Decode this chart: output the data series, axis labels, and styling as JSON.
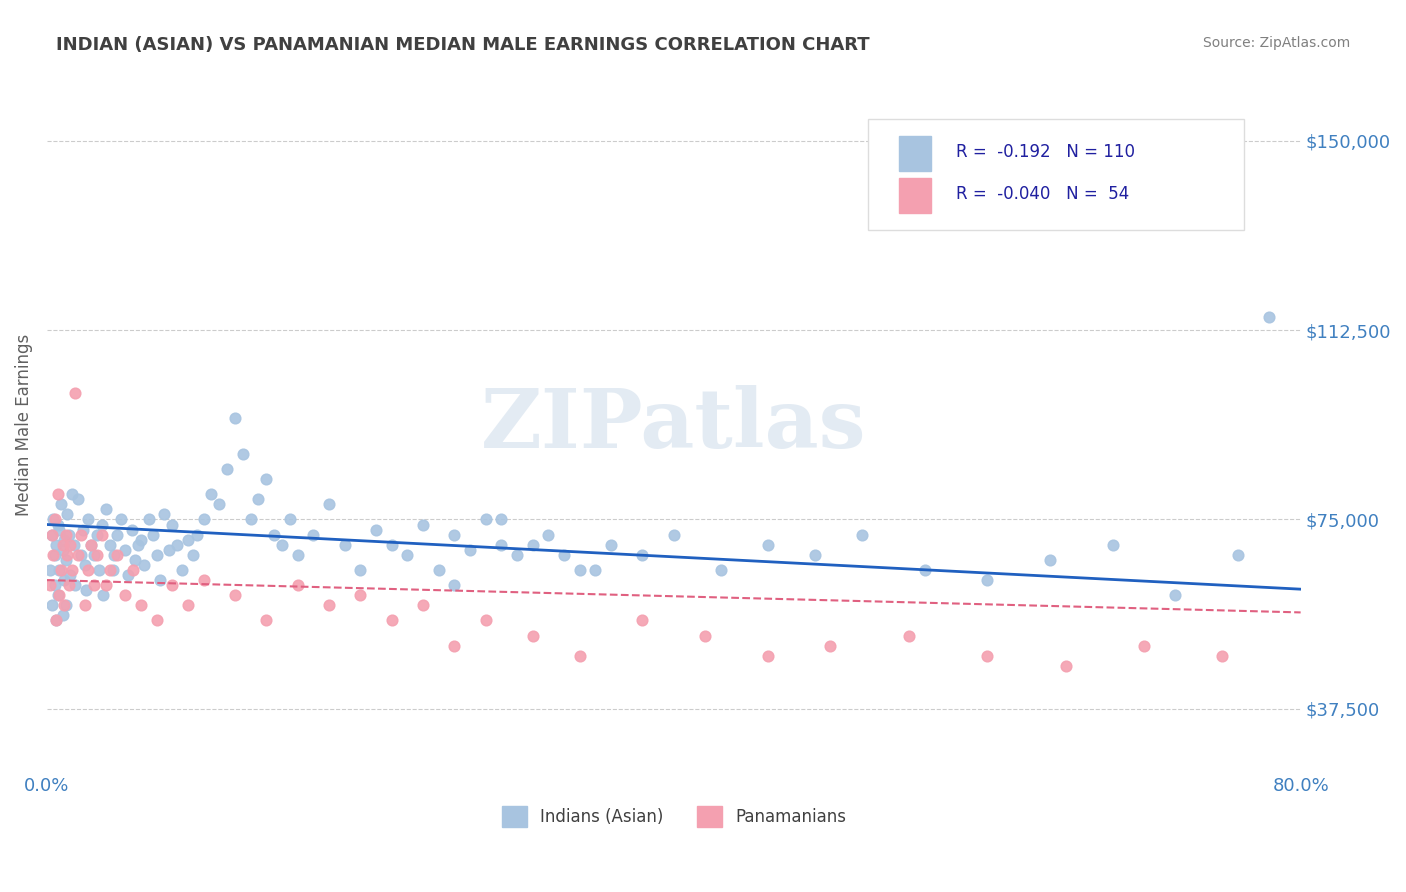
{
  "title": "INDIAN (ASIAN) VS PANAMANIAN MEDIAN MALE EARNINGS CORRELATION CHART",
  "source": "Source: ZipAtlas.com",
  "xlabel": "",
  "ylabel": "Median Male Earnings",
  "xlim": [
    0.0,
    0.8
  ],
  "ylim": [
    25000,
    162500
  ],
  "yticks": [
    37500,
    75000,
    112500,
    150000
  ],
  "ytick_labels": [
    "$37,500",
    "$75,000",
    "$112,500",
    "$150,000"
  ],
  "xticks": [
    0.0,
    0.1,
    0.2,
    0.3,
    0.4,
    0.5,
    0.6,
    0.7,
    0.8
  ],
  "xtick_labels": [
    "0.0%",
    "",
    "",
    "",
    "",
    "",
    "",
    "",
    "80.0%"
  ],
  "legend_r1": "R =  -0.192",
  "legend_n1": "N = 110",
  "legend_r2": "R =  -0.040",
  "legend_n2": "N =  54",
  "indian_color": "#a8c4e0",
  "panamanian_color": "#f4a0b0",
  "indian_line_color": "#2060c0",
  "panamanian_line_color": "#e06080",
  "title_color": "#404040",
  "axis_label_color": "#4080c0",
  "watermark": "ZIPatlas",
  "watermark_color": "#c8d8e8",
  "indian_x": [
    0.002,
    0.003,
    0.003,
    0.004,
    0.005,
    0.005,
    0.006,
    0.006,
    0.007,
    0.007,
    0.008,
    0.008,
    0.009,
    0.01,
    0.01,
    0.011,
    0.011,
    0.012,
    0.012,
    0.013,
    0.014,
    0.015,
    0.016,
    0.017,
    0.018,
    0.02,
    0.022,
    0.023,
    0.024,
    0.025,
    0.026,
    0.028,
    0.03,
    0.032,
    0.033,
    0.035,
    0.036,
    0.038,
    0.04,
    0.042,
    0.043,
    0.045,
    0.047,
    0.05,
    0.052,
    0.054,
    0.056,
    0.058,
    0.06,
    0.062,
    0.065,
    0.068,
    0.07,
    0.072,
    0.075,
    0.078,
    0.08,
    0.083,
    0.086,
    0.09,
    0.093,
    0.096,
    0.1,
    0.105,
    0.11,
    0.115,
    0.12,
    0.125,
    0.13,
    0.135,
    0.14,
    0.145,
    0.15,
    0.155,
    0.16,
    0.17,
    0.18,
    0.19,
    0.2,
    0.21,
    0.22,
    0.23,
    0.24,
    0.25,
    0.26,
    0.27,
    0.28,
    0.29,
    0.3,
    0.32,
    0.34,
    0.36,
    0.38,
    0.4,
    0.43,
    0.46,
    0.49,
    0.52,
    0.56,
    0.6,
    0.64,
    0.68,
    0.72,
    0.76,
    0.78,
    0.29,
    0.31,
    0.26,
    0.33,
    0.35
  ],
  "indian_y": [
    65000,
    72000,
    58000,
    75000,
    68000,
    62000,
    70000,
    55000,
    74000,
    60000,
    73000,
    65000,
    78000,
    69000,
    56000,
    71000,
    63000,
    67000,
    58000,
    76000,
    72000,
    64000,
    80000,
    70000,
    62000,
    79000,
    68000,
    73000,
    66000,
    61000,
    75000,
    70000,
    68000,
    72000,
    65000,
    74000,
    60000,
    77000,
    70000,
    65000,
    68000,
    72000,
    75000,
    69000,
    64000,
    73000,
    67000,
    70000,
    71000,
    66000,
    75000,
    72000,
    68000,
    63000,
    76000,
    69000,
    74000,
    70000,
    65000,
    71000,
    68000,
    72000,
    75000,
    80000,
    78000,
    85000,
    95000,
    88000,
    75000,
    79000,
    83000,
    72000,
    70000,
    75000,
    68000,
    72000,
    78000,
    70000,
    65000,
    73000,
    70000,
    68000,
    74000,
    65000,
    72000,
    69000,
    75000,
    70000,
    68000,
    72000,
    65000,
    70000,
    68000,
    72000,
    65000,
    70000,
    68000,
    72000,
    65000,
    63000,
    67000,
    70000,
    60000,
    68000,
    115000,
    75000,
    70000,
    62000,
    68000,
    65000
  ],
  "panamanian_x": [
    0.002,
    0.003,
    0.004,
    0.005,
    0.006,
    0.007,
    0.008,
    0.009,
    0.01,
    0.011,
    0.012,
    0.013,
    0.014,
    0.015,
    0.016,
    0.018,
    0.02,
    0.022,
    0.024,
    0.026,
    0.028,
    0.03,
    0.032,
    0.035,
    0.038,
    0.04,
    0.045,
    0.05,
    0.055,
    0.06,
    0.07,
    0.08,
    0.09,
    0.1,
    0.12,
    0.14,
    0.16,
    0.18,
    0.2,
    0.22,
    0.24,
    0.26,
    0.28,
    0.31,
    0.34,
    0.38,
    0.42,
    0.46,
    0.5,
    0.55,
    0.6,
    0.65,
    0.7,
    0.75
  ],
  "panamanian_y": [
    62000,
    72000,
    68000,
    75000,
    55000,
    80000,
    60000,
    65000,
    70000,
    58000,
    72000,
    68000,
    62000,
    70000,
    65000,
    100000,
    68000,
    72000,
    58000,
    65000,
    70000,
    62000,
    68000,
    72000,
    62000,
    65000,
    68000,
    60000,
    65000,
    58000,
    55000,
    62000,
    58000,
    63000,
    60000,
    55000,
    62000,
    58000,
    60000,
    55000,
    58000,
    50000,
    55000,
    52000,
    48000,
    55000,
    52000,
    48000,
    50000,
    52000,
    48000,
    46000,
    50000,
    48000
  ]
}
